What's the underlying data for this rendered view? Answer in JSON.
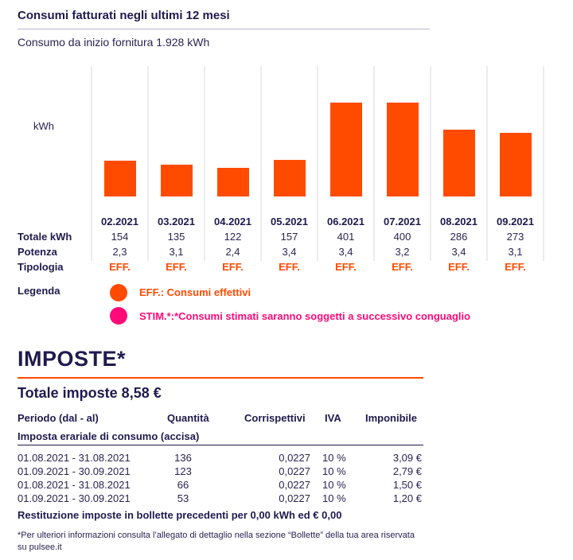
{
  "consumi": {
    "title": "Consumi fatturati negli ultimi 12 mesi",
    "subtitle": "Consumo da inizio fornitura 1.928 kWh",
    "unit_label": "kWh",
    "row_labels": {
      "totale": "Totale kWh",
      "potenza": "Potenza",
      "tipologia": "Tipologia"
    },
    "legend": {
      "title": "Legenda",
      "items": [
        {
          "label": "EFF.: Consumi effettivi",
          "color": "#ff4b00"
        },
        {
          "label": "STIM.*:*Consumi stimati saranno soggetti a successivo conguaglio",
          "color": "#ff0a78"
        }
      ]
    }
  },
  "chart_data": {
    "type": "bar",
    "categories": [
      "02.2021",
      "03.2021",
      "04.2021",
      "05.2021",
      "06.2021",
      "07.2021",
      "08.2021",
      "09.2021"
    ],
    "values": [
      154,
      135,
      122,
      157,
      401,
      400,
      286,
      273
    ],
    "potenza": [
      "2,3",
      "3,1",
      "2,4",
      "3,4",
      "3,4",
      "3,2",
      "3,4",
      "3,1"
    ],
    "tipologia": [
      "EFF.",
      "EFF.",
      "EFF.",
      "EFF.",
      "EFF.",
      "EFF.",
      "EFF.",
      "EFF."
    ],
    "ylabel": "kWh",
    "bar_color": "#ff4b00",
    "grid": false
  },
  "imposte": {
    "title": "IMPOSTE*",
    "totale": "Totale imposte 8,58 €",
    "headers": {
      "periodo": "Periodo (dal - al)",
      "quantita": "Quantità",
      "corrispettivi": "Corrispettivi",
      "iva": "IVA",
      "imponibile": "Imponibile"
    },
    "section": "Imposta erariale di consumo (accisa)",
    "rows": [
      {
        "periodo": "01.08.2021 - 31.08.2021",
        "quantita": "136",
        "corrispettivi": "0,0227",
        "iva": "10 %",
        "imponibile": "3,09 €"
      },
      {
        "periodo": "01.09.2021 - 30.09.2021",
        "quantita": "123",
        "corrispettivi": "0,0227",
        "iva": "10 %",
        "imponibile": "2,79 €"
      },
      {
        "periodo": "01.08.2021 - 31.08.2021",
        "quantita": "66",
        "corrispettivi": "0,0227",
        "iva": "10 %",
        "imponibile": "1,50 €"
      },
      {
        "periodo": "01.09.2021 - 30.09.2021",
        "quantita": "53",
        "corrispettivi": "0,0227",
        "iva": "10 %",
        "imponibile": "1,20 €"
      }
    ],
    "restituzione": "Restituzione imposte in bollette precedenti per 0,00 kWh ed € 0,00",
    "note": "*Per ulteriori informazioni consulta l’allegato di dettaglio nella sezione “Bollette” della tua area riservata su pulsee.it"
  }
}
